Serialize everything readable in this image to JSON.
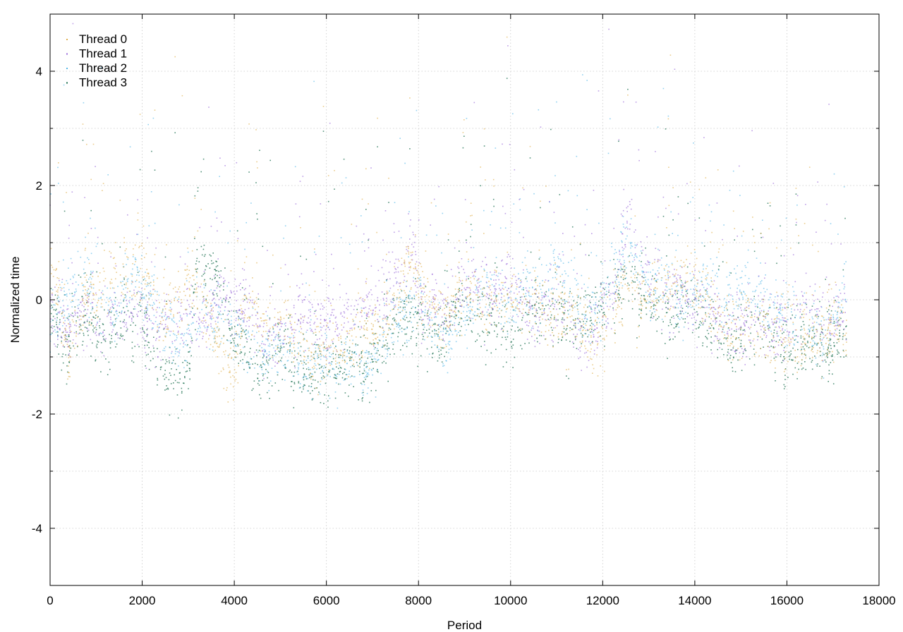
{
  "chart_data": {
    "type": "scatter",
    "title": "",
    "xlabel": "Period",
    "ylabel": "Normalized time",
    "xlim": [
      0,
      18000
    ],
    "ylim": [
      -5,
      5
    ],
    "x_ticks": [
      0,
      2000,
      4000,
      6000,
      8000,
      10000,
      12000,
      14000,
      16000,
      18000
    ],
    "y_ticks": [
      -4,
      -2,
      0,
      2,
      4
    ],
    "grid": true,
    "legend_position": "top-left",
    "x_max_data": 17300,
    "series": [
      {
        "name": "Thread 0",
        "color": "#e0b050",
        "trend_x": [
          0,
          200,
          400,
          600,
          800,
          1000,
          1200,
          1400,
          1600,
          1800,
          2000,
          2200,
          2400,
          2600,
          2800,
          3000,
          3200,
          3400,
          3600,
          3800,
          4000,
          4200,
          4400,
          4600,
          4800,
          5000,
          5200,
          5400,
          5600,
          5800,
          6000,
          6200,
          6400,
          6600,
          6800,
          7000,
          7200,
          7400,
          7600,
          7800,
          8000,
          8200,
          8400,
          8600,
          8800,
          9000,
          9200,
          9400,
          9600,
          9800,
          10000,
          10200,
          10400,
          10600,
          10800,
          11000,
          11200,
          11400,
          11600,
          11800,
          12000,
          12200,
          12400,
          12600,
          12800,
          13000,
          13200,
          13400,
          13600,
          13800,
          14000,
          14200,
          14400,
          14600,
          14800,
          15000,
          15200,
          15400,
          15600,
          15800,
          16000,
          16200,
          16400,
          16600,
          16800,
          17000,
          17200
        ],
        "trend_y": [
          0.4,
          0.1,
          -1.0,
          -0.5,
          0.2,
          0.0,
          0.3,
          0.5,
          0.4,
          0.6,
          0.5,
          0.3,
          -0.4,
          -0.2,
          0.1,
          0.4,
          0.1,
          -0.3,
          -0.6,
          -1.1,
          -1.2,
          -0.3,
          -0.1,
          -0.4,
          -0.5,
          -0.4,
          -0.6,
          -0.7,
          -0.8,
          -0.9,
          -0.9,
          -1.0,
          -0.9,
          -0.7,
          -0.5,
          -0.6,
          -0.4,
          -0.2,
          0.1,
          0.7,
          0.3,
          0.0,
          -0.3,
          -0.4,
          -0.2,
          0.2,
          0.1,
          -0.2,
          -0.1,
          0.0,
          0.1,
          -0.2,
          -0.1,
          0.0,
          -0.3,
          -0.1,
          -0.3,
          -0.2,
          -0.5,
          -0.8,
          -0.6,
          -0.2,
          0.1,
          0.2,
          -0.1,
          0.0,
          0.2,
          0.1,
          0.3,
          0.2,
          0.4,
          0.0,
          -0.2,
          -0.4,
          -0.7,
          -0.5,
          -0.2,
          -0.4,
          -0.6,
          -0.5,
          -0.7,
          -0.8,
          -0.6,
          -0.5,
          -0.6,
          -0.4,
          -0.5
        ]
      },
      {
        "name": "Thread 1",
        "color": "#9a6ad8",
        "trend_x": [
          0,
          200,
          400,
          600,
          800,
          1000,
          1200,
          1400,
          1600,
          1800,
          2000,
          2200,
          2400,
          2600,
          2800,
          3000,
          3200,
          3400,
          3600,
          3800,
          4000,
          4200,
          4400,
          4600,
          4800,
          5000,
          5200,
          5400,
          5600,
          5800,
          6000,
          6200,
          6400,
          6600,
          6800,
          7000,
          7200,
          7400,
          7600,
          7800,
          8000,
          8200,
          8400,
          8600,
          8800,
          9000,
          9200,
          9400,
          9600,
          9800,
          10000,
          10200,
          10400,
          10600,
          10800,
          11000,
          11200,
          11400,
          11600,
          11800,
          12000,
          12200,
          12400,
          12600,
          12800,
          13000,
          13200,
          13400,
          13600,
          13800,
          14000,
          14200,
          14400,
          14600,
          14800,
          15000,
          15200,
          15400,
          15600,
          15800,
          16000,
          16200,
          16400,
          16600,
          16800,
          17000,
          17200
        ],
        "trend_y": [
          -0.2,
          -0.4,
          -0.5,
          -0.3,
          -0.1,
          -0.4,
          -0.2,
          -0.5,
          -0.3,
          -0.2,
          -0.4,
          -0.3,
          -0.6,
          -0.5,
          -0.4,
          -0.2,
          -0.3,
          -0.4,
          0.1,
          -0.1,
          0.0,
          -0.2,
          -0.3,
          -0.6,
          -0.7,
          -0.5,
          -0.4,
          -0.3,
          -0.2,
          -0.4,
          -0.5,
          -0.3,
          -0.4,
          -0.2,
          -0.1,
          -0.2,
          0.1,
          0.3,
          0.5,
          1.0,
          0.2,
          -0.1,
          -0.2,
          -0.3,
          0.0,
          0.2,
          0.4,
          0.1,
          0.0,
          0.2,
          0.3,
          0.1,
          -0.2,
          -0.3,
          0.0,
          -0.1,
          -0.3,
          -0.5,
          -0.7,
          -0.6,
          -0.3,
          0.0,
          0.8,
          1.5,
          0.6,
          0.4,
          0.2,
          0.0,
          0.1,
          -0.1,
          0.0,
          -0.2,
          -0.3,
          -0.4,
          -0.5,
          -0.6,
          -0.4,
          -0.3,
          -0.5,
          -0.6,
          -0.4,
          -0.2,
          0.0,
          -0.3,
          -0.4,
          -0.3,
          -0.2
        ]
      },
      {
        "name": "Thread 2",
        "color": "#58b8e8",
        "trend_x": [
          0,
          200,
          400,
          600,
          800,
          1000,
          1200,
          1400,
          1600,
          1800,
          2000,
          2200,
          2400,
          2600,
          2800,
          3000,
          3200,
          3400,
          3600,
          3800,
          4000,
          4200,
          4400,
          4600,
          4800,
          5000,
          5200,
          5400,
          5600,
          5800,
          6000,
          6200,
          6400,
          6600,
          6800,
          7000,
          7200,
          7400,
          7600,
          7800,
          8000,
          8200,
          8400,
          8600,
          8800,
          9000,
          9200,
          9400,
          9600,
          9800,
          10000,
          10200,
          10400,
          10600,
          10800,
          11000,
          11200,
          11400,
          11600,
          11800,
          12000,
          12200,
          12400,
          12600,
          12800,
          13000,
          13200,
          13400,
          13600,
          13800,
          14000,
          14200,
          14400,
          14600,
          14800,
          15000,
          15200,
          15400,
          15600,
          15800,
          16000,
          16200,
          16400,
          16600,
          16800,
          17000,
          17200
        ],
        "trend_y": [
          -0.5,
          -0.2,
          0.0,
          0.2,
          0.3,
          0.1,
          0.0,
          -0.2,
          0.2,
          0.4,
          0.2,
          -0.1,
          -0.3,
          -0.6,
          -0.8,
          -0.5,
          -0.3,
          -0.2,
          -0.4,
          -0.3,
          -0.5,
          -0.6,
          -0.8,
          -1.0,
          -0.9,
          -0.8,
          -1.0,
          -1.1,
          -1.0,
          -0.9,
          -1.1,
          -1.2,
          -1.1,
          -1.0,
          -1.3,
          -1.0,
          -0.8,
          -0.5,
          -0.3,
          0.0,
          -0.2,
          -0.4,
          -0.7,
          -0.9,
          -0.5,
          -0.3,
          -0.1,
          0.2,
          0.3,
          0.0,
          -0.2,
          0.1,
          0.2,
          -0.1,
          0.4,
          0.6,
          0.3,
          0.0,
          -0.3,
          -0.2,
          0.0,
          0.3,
          0.8,
          0.9,
          0.6,
          0.3,
          0.4,
          0.2,
          0.0,
          -0.2,
          0.1,
          0.3,
          0.2,
          -0.1,
          0.0,
          0.2,
          0.3,
          0.1,
          0.0,
          -0.2,
          -0.4,
          -0.6,
          -0.3,
          -0.5,
          -0.6,
          -0.4,
          0.1
        ]
      },
      {
        "name": "Thread 3",
        "color": "#1d7050",
        "trend_x": [
          0,
          200,
          400,
          600,
          800,
          1000,
          1200,
          1400,
          1600,
          1800,
          2000,
          2200,
          2400,
          2600,
          2800,
          3000,
          3200,
          3400,
          3600,
          3800,
          4000,
          4200,
          4400,
          4600,
          4800,
          5000,
          5200,
          5400,
          5600,
          5800,
          6000,
          6200,
          6400,
          6600,
          6800,
          7000,
          7200,
          7400,
          7600,
          7800,
          8000,
          8200,
          8400,
          8600,
          8800,
          9000,
          9200,
          9400,
          9600,
          9800,
          10000,
          10200,
          10400,
          10600,
          10800,
          11000,
          11200,
          11400,
          11600,
          11800,
          12000,
          12200,
          12400,
          12600,
          12800,
          13000,
          13200,
          13400,
          13600,
          13800,
          14000,
          14200,
          14400,
          14600,
          14800,
          15000,
          15200,
          15400,
          15600,
          15800,
          16000,
          16200,
          16400,
          16600,
          16800,
          17000,
          17200
        ],
        "trend_y": [
          -0.3,
          -0.6,
          -0.8,
          -0.5,
          -0.3,
          -0.6,
          -0.8,
          -0.5,
          -0.3,
          -0.6,
          -0.4,
          -0.9,
          -1.2,
          -1.3,
          -1.4,
          -1.3,
          0.8,
          0.3,
          0.5,
          -0.2,
          -0.6,
          -0.9,
          -1.1,
          -1.2,
          -1.0,
          -0.9,
          -1.1,
          -1.2,
          -1.3,
          -1.2,
          -1.4,
          -1.3,
          -1.2,
          -1.1,
          -1.3,
          -1.1,
          -0.9,
          -0.6,
          -0.4,
          -0.2,
          -0.4,
          -0.6,
          -0.7,
          -0.5,
          -0.3,
          -0.1,
          -0.3,
          -0.5,
          -0.4,
          -0.6,
          -0.7,
          -0.5,
          -0.3,
          -0.2,
          -0.1,
          -0.2,
          -0.4,
          -0.5,
          -0.3,
          -0.2,
          -0.1,
          0.0,
          0.2,
          0.3,
          0.1,
          -0.1,
          -0.2,
          -0.4,
          -0.3,
          -0.1,
          -0.2,
          -0.4,
          -0.5,
          -0.7,
          -0.9,
          -0.7,
          -0.5,
          -0.4,
          -0.6,
          -0.8,
          -1.0,
          -0.9,
          -0.8,
          -0.7,
          -0.9,
          -0.8,
          -0.6
        ]
      }
    ]
  }
}
